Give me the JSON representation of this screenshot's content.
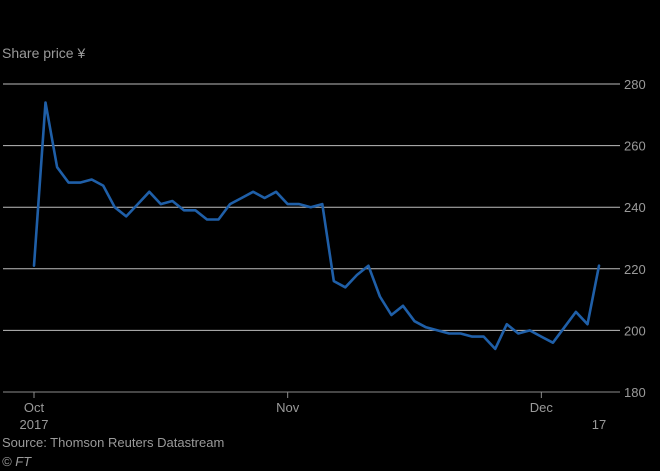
{
  "chart_data": {
    "type": "line",
    "title": "",
    "ylabel": "Share price ¥",
    "xlabel": "",
    "ylim": [
      180,
      280
    ],
    "yticks": [
      180,
      200,
      220,
      240,
      260,
      280
    ],
    "grid": true,
    "y_axis_side": "right",
    "x_tick_labels": [
      {
        "label": "Oct",
        "sublabel": "2017",
        "at": 0
      },
      {
        "label": "Nov",
        "sublabel": "",
        "at": 22
      },
      {
        "label": "Dec",
        "sublabel": "",
        "at": 44
      },
      {
        "label": "",
        "sublabel": "17",
        "at": 49
      }
    ],
    "series": [
      {
        "color": "#1f5fa8",
        "x": [
          0,
          1,
          2,
          3,
          4,
          5,
          6,
          7,
          8,
          9,
          10,
          11,
          12,
          13,
          14,
          15,
          16,
          17,
          18,
          19,
          20,
          21,
          22,
          23,
          24,
          25,
          26,
          27,
          28,
          29,
          30,
          31,
          32,
          33,
          34,
          35,
          36,
          37,
          38,
          39,
          40,
          41,
          42,
          43,
          44,
          45,
          46,
          47,
          48,
          49
        ],
        "values": [
          221,
          274,
          253,
          248,
          248,
          249,
          247,
          240,
          237,
          241,
          245,
          241,
          242,
          239,
          239,
          236,
          236,
          241,
          243,
          245,
          243,
          245,
          241,
          241,
          240,
          241,
          216,
          214,
          218,
          221,
          211,
          205,
          208,
          203,
          201,
          200,
          199,
          199,
          198,
          198,
          194,
          202,
          199,
          200,
          198,
          196,
          201,
          206,
          202,
          221
        ]
      }
    ]
  },
  "footer": {
    "source": "Source: Thomson Reuters Datastream",
    "credit": "© FT"
  }
}
